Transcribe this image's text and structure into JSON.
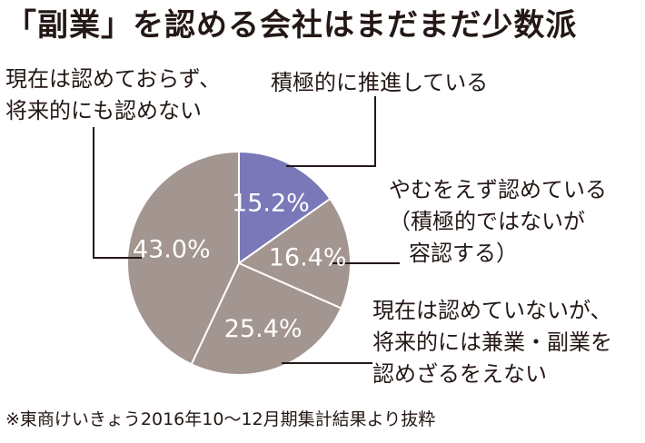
{
  "title": "「副業」を認める会社はまだまだ少数派",
  "chart_data": {
    "type": "pie",
    "slices": [
      {
        "label_lines": [
          "積極的に推進している"
        ],
        "value": 15.2,
        "value_label": "15.2%",
        "color": "#7a78b8"
      },
      {
        "label_lines": [
          "やむをえず認めている",
          "（積極的ではないが",
          "容認する）"
        ],
        "value": 16.4,
        "value_label": "16.4%",
        "color": "#a39590"
      },
      {
        "label_lines": [
          "現在は認めていないが、",
          "将来的には兼業・副業を",
          "認めざるをえない"
        ],
        "value": 25.4,
        "value_label": "25.4%",
        "color": "#a39590"
      },
      {
        "label_lines": [
          "現在は認めておらず、",
          "将来的にも認めない"
        ],
        "value": 43.0,
        "value_label": "43.0%",
        "color": "#a39590"
      }
    ],
    "slice_border_color": "#ffffff",
    "leader_line_color": "#231815"
  },
  "footnote": "※東商けいきょう2016年10〜12月期集計結果より抜粋"
}
